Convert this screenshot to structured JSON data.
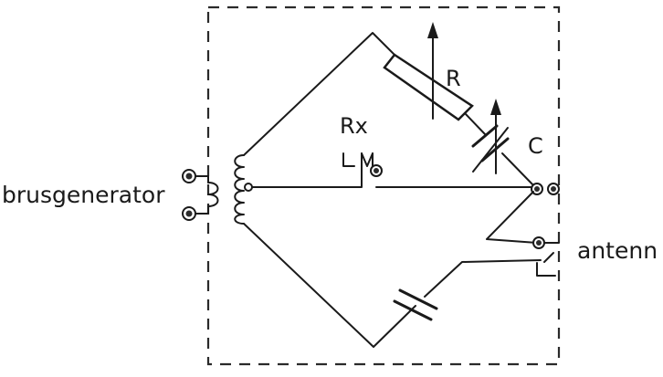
{
  "labels": {
    "source": "brusgenerator",
    "resistor": "R",
    "capacitor": "C",
    "unknown": "Rx",
    "antenna": "antenn"
  }
}
